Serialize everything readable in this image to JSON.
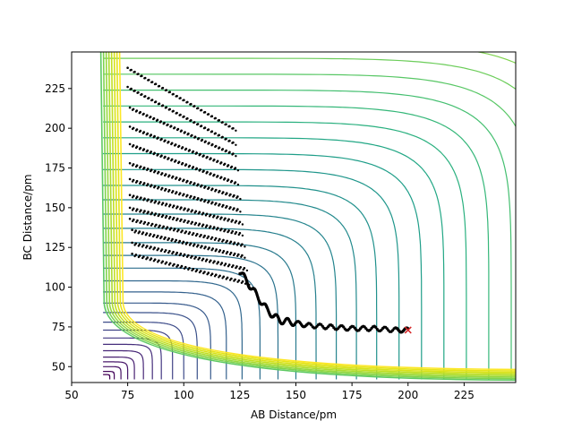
{
  "chart_data": {
    "type": "contour",
    "title": "",
    "xlabel": "AB Distance/pm",
    "ylabel": "BC Distance/pm",
    "xlim": [
      50,
      248
    ],
    "ylim": [
      40,
      248
    ],
    "xticks": [
      50,
      75,
      100,
      125,
      150,
      175,
      200,
      225
    ],
    "yticks": [
      50,
      75,
      100,
      125,
      150,
      175,
      200,
      225
    ],
    "grid": false,
    "legend": "none",
    "colormap": [
      "#440154",
      "#3b528b",
      "#21918c",
      "#5ec962",
      "#fde725"
    ],
    "trajectory_color": "#000000",
    "start_marker_color": "#d62728",
    "contour_levels": [
      {
        "r": 3,
        "color": "#440154"
      },
      {
        "r": 5,
        "color": "#46085c"
      },
      {
        "r": 8,
        "color": "#471164"
      },
      {
        "r": 11,
        "color": "#48186a"
      },
      {
        "r": 14,
        "color": "#482071"
      },
      {
        "r": 18,
        "color": "#472777"
      },
      {
        "r": 22,
        "color": "#462f7c"
      },
      {
        "r": 26,
        "color": "#443983"
      },
      {
        "r": 31,
        "color": "#414487"
      },
      {
        "r": 36,
        "color": "#3e4c8a"
      },
      {
        "r": 42,
        "color": "#3b528b"
      },
      {
        "r": 48,
        "color": "#375a8c"
      },
      {
        "r": 55,
        "color": "#34618d"
      },
      {
        "r": 62,
        "color": "#31688e"
      },
      {
        "r": 70,
        "color": "#2e6f8e"
      },
      {
        "r": 78,
        "color": "#2c738e"
      },
      {
        "r": 86,
        "color": "#297a8e"
      },
      {
        "r": 95,
        "color": "#27808e"
      },
      {
        "r": 104,
        "color": "#25858e"
      },
      {
        "r": 113,
        "color": "#238a8d"
      },
      {
        "r": 122,
        "color": "#21918c"
      },
      {
        "r": 132,
        "color": "#1f968b"
      },
      {
        "r": 142,
        "color": "#1f9e89"
      },
      {
        "r": 152,
        "color": "#22a785"
      },
      {
        "r": 162,
        "color": "#2ab07f"
      },
      {
        "r": 172,
        "color": "#35b779"
      },
      {
        "r": 182,
        "color": "#44bf70"
      },
      {
        "r": 192,
        "color": "#58c765"
      },
      {
        "r": 202,
        "color": "#6ccd5a"
      },
      {
        "r": 212,
        "color": "#7fd34e"
      },
      {
        "r": 224,
        "color": "#95d840"
      },
      {
        "r": 236,
        "color": "#addc30"
      },
      {
        "r": 250,
        "color": "#c2df23"
      },
      {
        "r": 264,
        "color": "#d8e219"
      },
      {
        "r": 280,
        "color": "#e5e419"
      },
      {
        "r": 296,
        "color": "#fde725"
      }
    ],
    "wall_colors": [
      "#5ec962",
      "#7fd34e",
      "#95d840",
      "#addc30",
      "#c2df23",
      "#d8e219",
      "#e5e419",
      "#fde725"
    ],
    "start_point": [
      200,
      73
    ],
    "trajectory_bands": [
      {
        "x": [
          75,
          122
        ],
        "y": [
          238,
          200
        ]
      },
      {
        "x": [
          75,
          122
        ],
        "y": [
          226,
          191
        ]
      },
      {
        "x": [
          76,
          122
        ],
        "y": [
          213,
          184
        ]
      },
      {
        "x": [
          76,
          123
        ],
        "y": [
          201,
          175
        ]
      },
      {
        "x": [
          76,
          123
        ],
        "y": [
          190,
          166
        ]
      },
      {
        "x": [
          76,
          124
        ],
        "y": [
          178,
          157
        ]
      },
      {
        "x": [
          76,
          124
        ],
        "y": [
          168,
          149
        ]
      },
      {
        "x": [
          76,
          125
        ],
        "y": [
          158,
          141
        ]
      },
      {
        "x": [
          76,
          125
        ],
        "y": [
          150,
          134
        ]
      },
      {
        "x": [
          76,
          126
        ],
        "y": [
          143,
          127
        ]
      },
      {
        "x": [
          77,
          126
        ],
        "y": [
          136,
          120
        ]
      },
      {
        "x": [
          77,
          127
        ],
        "y": [
          128,
          112
        ]
      },
      {
        "x": [
          77,
          128
        ],
        "y": [
          121,
          103
        ]
      }
    ],
    "oscillation_track": [
      [
        125,
        110
      ],
      [
        128,
        104
      ],
      [
        131,
        98
      ],
      [
        134,
        92
      ],
      [
        137,
        86
      ],
      [
        140,
        82
      ],
      [
        143,
        79
      ],
      [
        148,
        78
      ],
      [
        155,
        76
      ],
      [
        165,
        75
      ],
      [
        175,
        74
      ],
      [
        185,
        74
      ],
      [
        195,
        73
      ],
      [
        200,
        73
      ]
    ]
  }
}
